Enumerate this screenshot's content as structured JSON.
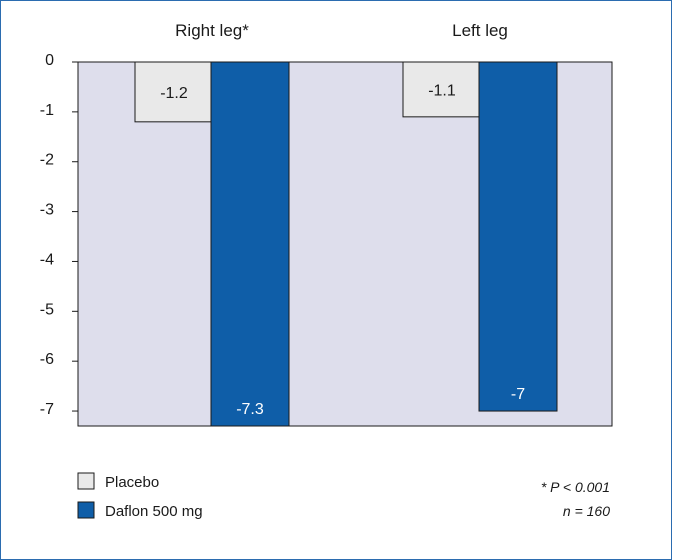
{
  "chart_data": {
    "type": "bar",
    "categories": [
      "Right leg*",
      "Left leg"
    ],
    "series": [
      {
        "name": "Placebo",
        "values": [
          -1.2,
          -1.1
        ],
        "color": "#e9e9e9",
        "label_color": "#1a1a1a"
      },
      {
        "name": "Daflon 500 mg",
        "values": [
          -7.3,
          -7
        ],
        "color": "#0f5ea8",
        "label_color": "#ffffff"
      }
    ],
    "value_labels": [
      [
        "-1.2",
        "-1.1"
      ],
      [
        "-7.3",
        "-7"
      ]
    ],
    "ylim": [
      -7.3,
      0
    ],
    "yticks": [
      0,
      -1,
      -2,
      -3,
      -4,
      -5,
      -6,
      -7
    ],
    "ytick_labels": [
      "0",
      "-1",
      "-2",
      "-3",
      "-4",
      "-5",
      "-6",
      "-7"
    ],
    "plot_background": "#dedeec",
    "border_color": "#2b6cb0",
    "grid": false,
    "legend_position": "bottom-left",
    "footnotes": [
      "* P < 0.001",
      "n = 160"
    ]
  }
}
